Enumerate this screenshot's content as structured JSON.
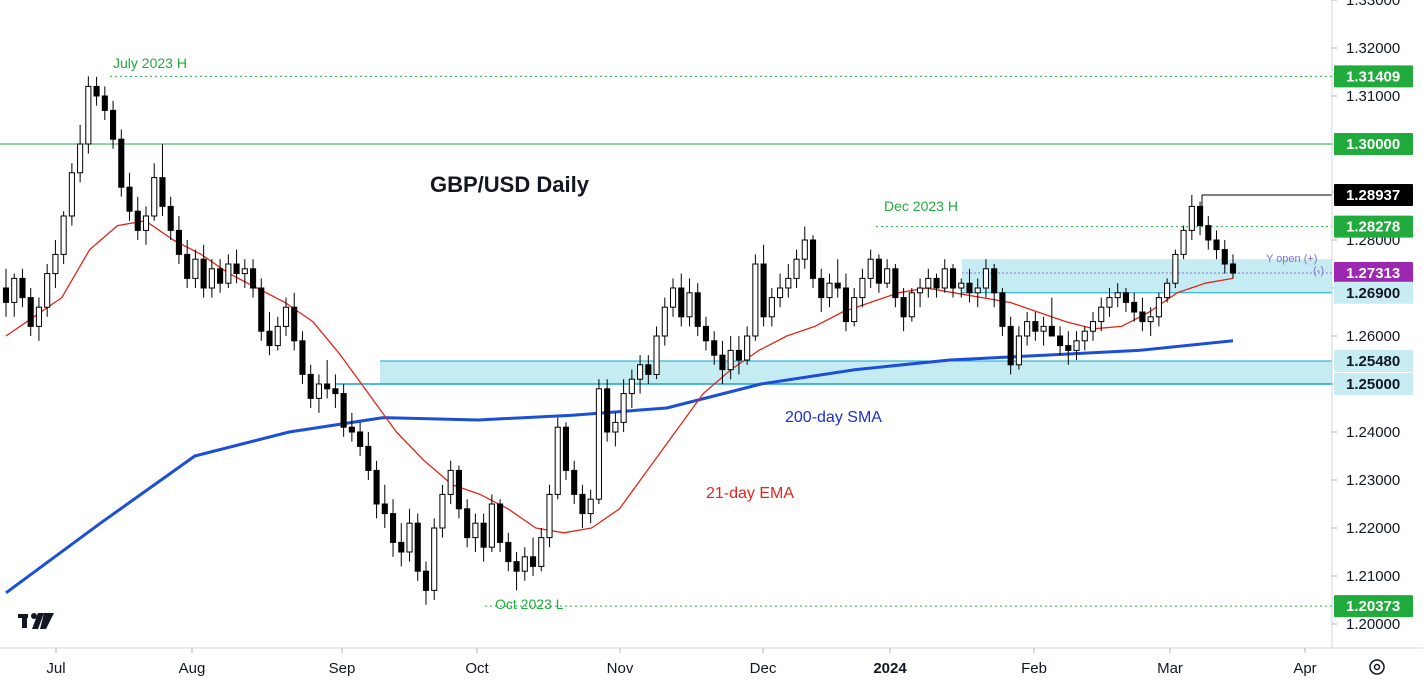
{
  "chart_data": {
    "type": "candlestick",
    "title": "GBP/USD Daily",
    "ylim": [
      1.195,
      1.33
    ],
    "y_ticks": [
      "1.33000",
      "1.32000",
      "1.31000",
      "1.30000",
      "1.29000",
      "1.28000",
      "1.27000",
      "1.26000",
      "1.25000",
      "1.24000",
      "1.23000",
      "1.22000",
      "1.21000",
      "1.20000"
    ],
    "x_ticks": [
      "Jul",
      "Aug",
      "Sep",
      "Oct",
      "Nov",
      "Dec",
      "2024",
      "Feb",
      "Mar",
      "Apr"
    ],
    "price_tags": [
      {
        "label": "1.31409",
        "value": 1.31409,
        "color": "#22ab3d",
        "text_color": "#ffffff"
      },
      {
        "label": "1.30000",
        "value": 1.3,
        "color": "#22ab3d",
        "text_color": "#ffffff"
      },
      {
        "label": "1.28937",
        "value": 1.28937,
        "color": "#000000",
        "text_color": "#ffffff"
      },
      {
        "label": "1.28278",
        "value": 1.28278,
        "color": "#22ab3d",
        "text_color": "#ffffff"
      },
      {
        "label": "1.27313",
        "value": 1.27313,
        "color": "#9c27b0",
        "text_color": "#ffffff"
      },
      {
        "label": "1.26900",
        "value": 1.269,
        "color": "#c8ecf3",
        "text_color": "#131722"
      },
      {
        "label": "1.25480",
        "value": 1.2548,
        "color": "#c8ecf3",
        "text_color": "#131722"
      },
      {
        "label": "1.25000",
        "value": 1.25,
        "color": "#c8ecf3",
        "text_color": "#131722"
      },
      {
        "label": "1.20373",
        "value": 1.20373,
        "color": "#22ab3d",
        "text_color": "#ffffff"
      }
    ],
    "annotations": {
      "july_high": "July 2023 H",
      "dec_high": "Dec 2023 H",
      "oct_low": "Oct 2023 L",
      "sma_label": "200-day SMA",
      "ema_label": "21-day EMA",
      "y_open_plus": "Y open (+)",
      "y_open_minus": "(-)"
    },
    "zones": [
      {
        "from": 1.2548,
        "to": 1.25,
        "color": "#b2e5ef"
      },
      {
        "from": 1.276,
        "to": 1.269,
        "color": "#b2e5ef"
      }
    ],
    "key_levels": {
      "july_high": 1.31409,
      "round_130": 1.3,
      "dec_high": 1.28278,
      "recent_high": 1.28937,
      "y_open": 1.27313,
      "oct_low": 1.20373
    },
    "ohlc": [
      [
        1.27,
        1.274,
        1.264,
        1.267
      ],
      [
        1.267,
        1.273,
        1.264,
        1.272
      ],
      [
        1.272,
        1.274,
        1.266,
        1.268
      ],
      [
        1.268,
        1.27,
        1.26,
        1.262
      ],
      [
        1.262,
        1.268,
        1.259,
        1.266
      ],
      [
        1.266,
        1.275,
        1.264,
        1.273
      ],
      [
        1.273,
        1.28,
        1.27,
        1.277
      ],
      [
        1.277,
        1.286,
        1.275,
        1.285
      ],
      [
        1.285,
        1.296,
        1.283,
        1.294
      ],
      [
        1.294,
        1.304,
        1.292,
        1.3
      ],
      [
        1.3,
        1.3141,
        1.298,
        1.312
      ],
      [
        1.312,
        1.314,
        1.308,
        1.31
      ],
      [
        1.31,
        1.312,
        1.305,
        1.307
      ],
      [
        1.307,
        1.309,
        1.299,
        1.301
      ],
      [
        1.301,
        1.303,
        1.289,
        1.291
      ],
      [
        1.291,
        1.294,
        1.284,
        1.286
      ],
      [
        1.286,
        1.289,
        1.28,
        1.282
      ],
      [
        1.282,
        1.287,
        1.279,
        1.285
      ],
      [
        1.285,
        1.296,
        1.284,
        1.293
      ],
      [
        1.293,
        1.3,
        1.285,
        1.287
      ],
      [
        1.287,
        1.289,
        1.28,
        1.282
      ],
      [
        1.282,
        1.285,
        1.275,
        1.277
      ],
      [
        1.277,
        1.28,
        1.27,
        1.272
      ],
      [
        1.272,
        1.278,
        1.27,
        1.276
      ],
      [
        1.276,
        1.279,
        1.268,
        1.27
      ],
      [
        1.27,
        1.276,
        1.268,
        1.274
      ],
      [
        1.274,
        1.276,
        1.269,
        1.271
      ],
      [
        1.271,
        1.277,
        1.27,
        1.275
      ],
      [
        1.275,
        1.278,
        1.271,
        1.273
      ],
      [
        1.273,
        1.276,
        1.27,
        1.274
      ],
      [
        1.274,
        1.276,
        1.268,
        1.27
      ],
      [
        1.27,
        1.272,
        1.259,
        1.261
      ],
      [
        1.261,
        1.265,
        1.256,
        1.258
      ],
      [
        1.258,
        1.264,
        1.257,
        1.262
      ],
      [
        1.262,
        1.268,
        1.26,
        1.266
      ],
      [
        1.266,
        1.269,
        1.257,
        1.259
      ],
      [
        1.259,
        1.261,
        1.25,
        1.252
      ],
      [
        1.252,
        1.254,
        1.245,
        1.247
      ],
      [
        1.247,
        1.252,
        1.244,
        1.25
      ],
      [
        1.25,
        1.255,
        1.247,
        1.249
      ],
      [
        1.249,
        1.252,
        1.245,
        1.248
      ],
      [
        1.248,
        1.25,
        1.239,
        1.241
      ],
      [
        1.241,
        1.244,
        1.238,
        1.24
      ],
      [
        1.24,
        1.242,
        1.235,
        1.237
      ],
      [
        1.237,
        1.24,
        1.23,
        1.232
      ],
      [
        1.232,
        1.234,
        1.222,
        1.225
      ],
      [
        1.225,
        1.229,
        1.22,
        1.223
      ],
      [
        1.223,
        1.226,
        1.214,
        1.217
      ],
      [
        1.217,
        1.221,
        1.212,
        1.215
      ],
      [
        1.215,
        1.224,
        1.213,
        1.221
      ],
      [
        1.221,
        1.223,
        1.209,
        1.211
      ],
      [
        1.211,
        1.213,
        1.204,
        1.207
      ],
      [
        1.207,
        1.222,
        1.205,
        1.22
      ],
      [
        1.22,
        1.229,
        1.218,
        1.227
      ],
      [
        1.227,
        1.234,
        1.225,
        1.232
      ],
      [
        1.232,
        1.233,
        1.222,
        1.224
      ],
      [
        1.224,
        1.226,
        1.216,
        1.218
      ],
      [
        1.218,
        1.223,
        1.215,
        1.221
      ],
      [
        1.221,
        1.223,
        1.213,
        1.216
      ],
      [
        1.216,
        1.227,
        1.215,
        1.225
      ],
      [
        1.225,
        1.226,
        1.215,
        1.217
      ],
      [
        1.217,
        1.219,
        1.211,
        1.213
      ],
      [
        1.213,
        1.215,
        1.207,
        1.211
      ],
      [
        1.211,
        1.216,
        1.209,
        1.214
      ],
      [
        1.214,
        1.218,
        1.21,
        1.212
      ],
      [
        1.212,
        1.22,
        1.211,
        1.218
      ],
      [
        1.218,
        1.229,
        1.216,
        1.227
      ],
      [
        1.227,
        1.243,
        1.226,
        1.241
      ],
      [
        1.241,
        1.242,
        1.23,
        1.232
      ],
      [
        1.232,
        1.234,
        1.225,
        1.227
      ],
      [
        1.227,
        1.229,
        1.22,
        1.223
      ],
      [
        1.223,
        1.228,
        1.221,
        1.226
      ],
      [
        1.226,
        1.251,
        1.225,
        1.249
      ],
      [
        1.249,
        1.251,
        1.238,
        1.24
      ],
      [
        1.24,
        1.244,
        1.237,
        1.242
      ],
      [
        1.242,
        1.251,
        1.24,
        1.248
      ],
      [
        1.248,
        1.253,
        1.245,
        1.251
      ],
      [
        1.251,
        1.256,
        1.248,
        1.254
      ],
      [
        1.254,
        1.256,
        1.25,
        1.252
      ],
      [
        1.252,
        1.262,
        1.251,
        1.26
      ],
      [
        1.26,
        1.268,
        1.258,
        1.266
      ],
      [
        1.266,
        1.272,
        1.264,
        1.27
      ],
      [
        1.27,
        1.273,
        1.262,
        1.264
      ],
      [
        1.264,
        1.272,
        1.262,
        1.269
      ],
      [
        1.269,
        1.271,
        1.26,
        1.262
      ],
      [
        1.262,
        1.264,
        1.257,
        1.259
      ],
      [
        1.259,
        1.261,
        1.254,
        1.256
      ],
      [
        1.256,
        1.259,
        1.25,
        1.253
      ],
      [
        1.253,
        1.26,
        1.251,
        1.257
      ],
      [
        1.257,
        1.26,
        1.252,
        1.255
      ],
      [
        1.255,
        1.262,
        1.254,
        1.26
      ],
      [
        1.26,
        1.277,
        1.259,
        1.275
      ],
      [
        1.275,
        1.279,
        1.262,
        1.264
      ],
      [
        1.264,
        1.27,
        1.262,
        1.268
      ],
      [
        1.268,
        1.273,
        1.266,
        1.27
      ],
      [
        1.27,
        1.275,
        1.268,
        1.272
      ],
      [
        1.272,
        1.278,
        1.27,
        1.276
      ],
      [
        1.276,
        1.2828,
        1.274,
        1.28
      ],
      [
        1.28,
        1.281,
        1.27,
        1.272
      ],
      [
        1.272,
        1.274,
        1.265,
        1.268
      ],
      [
        1.268,
        1.273,
        1.266,
        1.271
      ],
      [
        1.271,
        1.276,
        1.268,
        1.27
      ],
      [
        1.27,
        1.273,
        1.261,
        1.263
      ],
      [
        1.263,
        1.27,
        1.262,
        1.268
      ],
      [
        1.268,
        1.274,
        1.266,
        1.272
      ],
      [
        1.272,
        1.278,
        1.27,
        1.276
      ],
      [
        1.276,
        1.277,
        1.269,
        1.271
      ],
      [
        1.271,
        1.276,
        1.27,
        1.274
      ],
      [
        1.274,
        1.275,
        1.266,
        1.268
      ],
      [
        1.268,
        1.27,
        1.261,
        1.264
      ],
      [
        1.264,
        1.27,
        1.263,
        1.269
      ],
      [
        1.269,
        1.272,
        1.266,
        1.27
      ],
      [
        1.27,
        1.274,
        1.268,
        1.272
      ],
      [
        1.272,
        1.273,
        1.268,
        1.27
      ],
      [
        1.27,
        1.276,
        1.269,
        1.274
      ],
      [
        1.274,
        1.275,
        1.268,
        1.27
      ],
      [
        1.27,
        1.272,
        1.268,
        1.271
      ],
      [
        1.271,
        1.274,
        1.267,
        1.269
      ],
      [
        1.269,
        1.272,
        1.266,
        1.27
      ],
      [
        1.27,
        1.276,
        1.268,
        1.274
      ],
      [
        1.274,
        1.275,
        1.266,
        1.269
      ],
      [
        1.269,
        1.27,
        1.26,
        1.262
      ],
      [
        1.262,
        1.264,
        1.252,
        1.254
      ],
      [
        1.254,
        1.262,
        1.253,
        1.26
      ],
      [
        1.26,
        1.265,
        1.258,
        1.263
      ],
      [
        1.263,
        1.265,
        1.259,
        1.261
      ],
      [
        1.261,
        1.264,
        1.258,
        1.262
      ],
      [
        1.262,
        1.268,
        1.26,
        1.26
      ],
      [
        1.26,
        1.262,
        1.256,
        1.258
      ],
      [
        1.258,
        1.261,
        1.254,
        1.257
      ],
      [
        1.257,
        1.261,
        1.255,
        1.259
      ],
      [
        1.259,
        1.262,
        1.257,
        1.261
      ],
      [
        1.261,
        1.265,
        1.259,
        1.263
      ],
      [
        1.263,
        1.268,
        1.261,
        1.266
      ],
      [
        1.266,
        1.27,
        1.264,
        1.268
      ],
      [
        1.268,
        1.271,
        1.266,
        1.269
      ],
      [
        1.269,
        1.27,
        1.265,
        1.267
      ],
      [
        1.267,
        1.269,
        1.263,
        1.265
      ],
      [
        1.265,
        1.268,
        1.261,
        1.263
      ],
      [
        1.263,
        1.266,
        1.26,
        1.264
      ],
      [
        1.264,
        1.269,
        1.262,
        1.268
      ],
      [
        1.268,
        1.272,
        1.267,
        1.271
      ],
      [
        1.271,
        1.278,
        1.27,
        1.277
      ],
      [
        1.277,
        1.283,
        1.276,
        1.282
      ],
      [
        1.282,
        1.2894,
        1.28,
        1.287
      ],
      [
        1.287,
        1.288,
        1.281,
        1.283
      ],
      [
        1.283,
        1.285,
        1.278,
        1.28
      ],
      [
        1.28,
        1.282,
        1.276,
        1.278
      ],
      [
        1.278,
        1.28,
        1.273,
        1.275
      ],
      [
        1.275,
        1.277,
        1.272,
        1.2731
      ]
    ],
    "sma200": [
      1.2065,
      1.221,
      1.235,
      1.24,
      1.243,
      1.2425,
      1.2435,
      1.245,
      1.25,
      1.253,
      1.255,
      1.256,
      1.257,
      1.259
    ],
    "ema21": [
      1.26,
      1.264,
      1.268,
      1.278,
      1.283,
      1.284,
      1.28,
      1.277,
      1.273,
      1.27,
      1.267,
      1.263,
      1.256,
      1.248,
      1.24,
      1.234,
      1.229,
      1.227,
      1.224,
      1.22,
      1.219,
      1.22,
      1.224,
      1.232,
      1.24,
      1.248,
      1.253,
      1.257,
      1.26,
      1.262,
      1.265,
      1.267,
      1.269,
      1.27,
      1.269,
      1.268,
      1.267,
      1.265,
      1.263,
      1.2615,
      1.262,
      1.265,
      1.269,
      1.271,
      1.272
    ]
  }
}
